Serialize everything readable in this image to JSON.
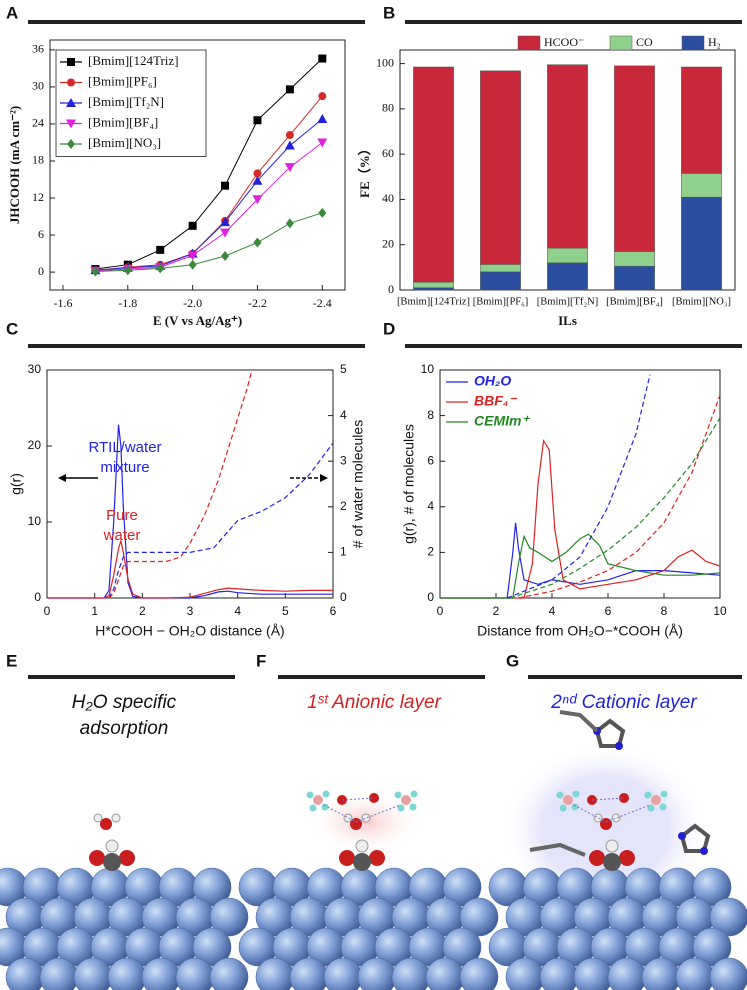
{
  "panel_labels": [
    "A",
    "B",
    "C",
    "D",
    "E",
    "F",
    "G"
  ],
  "chart_data": [
    {
      "type": "line",
      "xlabel": "E (V vs Ag/Ag⁺)",
      "ylabel": "JHCOOH (mA cm⁻²)",
      "xlim": [
        -1.56,
        -2.47
      ],
      "ylim": [
        -2.9,
        37.6
      ],
      "xticks": [
        -1.6,
        -1.8,
        {
          "value": -2,
          "label": "-2.0"
        },
        -2.2,
        -2.4
      ],
      "yticks": [
        0,
        6,
        12,
        18,
        24,
        30,
        36
      ],
      "legend": "upper left",
      "x": [
        -1.7,
        -1.8,
        -1.9,
        -2,
        -2.1,
        -2.2,
        -2.3,
        -2.4
      ],
      "series": [
        {
          "name": "[Bmim][124Triz]",
          "color": "#000000",
          "marker": "square",
          "values": [
            0.5,
            1.2,
            3.6,
            7.5,
            14,
            24.6,
            29.6,
            34.6
          ]
        },
        {
          "name": "[Bmim][PF₆]",
          "color": "#d42a2a",
          "marker": "circle",
          "values": [
            0.3,
            0.8,
            1.2,
            3,
            8.3,
            16,
            22.2,
            28.5
          ]
        },
        {
          "name": "[Bmim][Tf₂N]",
          "color": "#2222dd",
          "marker": "triangle-up",
          "values": [
            0.3,
            0.7,
            1,
            3,
            8.1,
            14.8,
            20.5,
            24.8
          ]
        },
        {
          "name": "[Bmim][BF₄]",
          "color": "#dd22dd",
          "marker": "triangle-down",
          "values": [
            0.2,
            0.5,
            0.8,
            2.7,
            6.4,
            11.8,
            17,
            21
          ]
        },
        {
          "name": "[Bmim][NO₃]",
          "color": "#3a8a3a",
          "marker": "diamond",
          "values": [
            0.1,
            0.3,
            0.6,
            1.2,
            2.6,
            4.8,
            7.9,
            9.6
          ]
        }
      ]
    },
    {
      "type": "bar",
      "stacked": true,
      "xlabel": "ILs",
      "ylabel": "FE（%）",
      "ylim": [
        0,
        106
      ],
      "yticks": [
        0,
        20,
        40,
        60,
        80,
        100
      ],
      "legend": "top",
      "categories": [
        "[Bmim][124Triz]",
        "[Bmim][PF₆]",
        "[Bmim][Tf₂N]",
        "[Bmim][BF₄]",
        "[Bmim][NO₃]"
      ],
      "series": [
        {
          "name": "H₂",
          "color": "#2a4ea0",
          "values": [
            1,
            8,
            12,
            10.5,
            41
          ]
        },
        {
          "name": "CO",
          "color": "#8fd18a",
          "values": [
            2.5,
            3.3,
            6.5,
            6.5,
            10.5
          ]
        },
        {
          "name": "HCOO⁻",
          "color": "#c8283a",
          "values": [
            95,
            85.5,
            81,
            82,
            47
          ]
        }
      ]
    },
    {
      "type": "line",
      "xlabel": "H*COOH − OH₂O distance (Å)",
      "ylabel": "g(r)",
      "y2label": "# of water molecules",
      "xlim": [
        0,
        6
      ],
      "ylim": [
        0,
        30
      ],
      "y2lim": [
        0,
        5
      ],
      "xticks": [
        0,
        1,
        2,
        3,
        4,
        5,
        6
      ],
      "yticks": [
        0,
        10,
        20,
        30
      ],
      "y2ticks": [
        0,
        1,
        2,
        3,
        4,
        5
      ],
      "annotations": [
        "RTIL/water",
        "mixture",
        "Pure",
        "water"
      ],
      "series": [
        {
          "color": "#2222ee",
          "x": [
            0,
            1.2,
            1.3,
            1.4,
            1.5,
            1.55,
            1.6,
            1.7,
            1.8,
            2,
            2.5,
            3,
            3.3,
            3.6,
            3.8,
            4,
            4.5,
            5,
            5.5,
            6
          ],
          "values": [
            0,
            0,
            1,
            10,
            22.8,
            20,
            12,
            2,
            0.2,
            0,
            0,
            0,
            0.3,
            0.8,
            0.9,
            0.7,
            0.5,
            0.5,
            0.5,
            0.5
          ]
        },
        {
          "color": "#dd2222",
          "x": [
            0,
            1.2,
            1.3,
            1.4,
            1.5,
            1.55,
            1.6,
            1.7,
            1.8,
            2,
            2.5,
            3,
            3.3,
            3.6,
            3.8,
            4,
            4.5,
            5,
            5.5,
            6
          ],
          "values": [
            0,
            0,
            0.3,
            3,
            6.5,
            7.5,
            6,
            2.5,
            0.5,
            0,
            0,
            0.1,
            0.6,
            1.1,
            1.3,
            1.2,
            1,
            0.9,
            1,
            1
          ]
        },
        {
          "color": "#2222ee",
          "dash": true,
          "axis": "y2",
          "x": [
            1.3,
            1.4,
            1.5,
            1.6,
            1.7,
            2,
            2.5,
            3,
            3.5,
            4,
            4.5,
            5,
            5.5,
            6
          ],
          "values": [
            0,
            0.2,
            0.6,
            0.9,
            1,
            1,
            1,
            1,
            1.1,
            1.7,
            1.9,
            2.2,
            2.7,
            3.4
          ]
        },
        {
          "color": "#dd2222",
          "dash": true,
          "axis": "y2",
          "x": [
            1.3,
            1.4,
            1.5,
            1.6,
            1.7,
            2,
            2.5,
            2.8,
            3,
            3.3,
            3.6,
            3.9,
            4.2,
            4.3
          ],
          "values": [
            0,
            0.1,
            0.4,
            0.7,
            0.8,
            0.8,
            0.8,
            0.9,
            1.2,
            1.8,
            2.6,
            3.6,
            4.6,
            5
          ]
        }
      ]
    },
    {
      "type": "line",
      "xlabel": "Distance from OH₂O−*COOH (Å)",
      "ylabel": "g(r), # of molecules",
      "legend": "upper left",
      "xlim": [
        0,
        10
      ],
      "ylim": [
        0,
        10
      ],
      "xticks": [
        0,
        2,
        4,
        6,
        8,
        10
      ],
      "yticks": [
        0,
        2,
        4,
        6,
        8,
        10
      ],
      "series": [
        {
          "name": "OH₂O",
          "color": "#2222ee",
          "x": [
            0,
            2.4,
            2.6,
            2.7,
            2.8,
            3,
            3.5,
            4,
            5,
            6,
            7,
            8,
            9,
            10
          ],
          "values": [
            0,
            0,
            2,
            3.3,
            2.2,
            0.8,
            0.6,
            0.8,
            0.6,
            0.8,
            1.2,
            1.2,
            1.1,
            1
          ]
        },
        {
          "name": "BBF₄⁻",
          "color": "#dd2222",
          "x": [
            0,
            3,
            3.3,
            3.5,
            3.7,
            3.9,
            4.1,
            4.4,
            5,
            6,
            7,
            8,
            8.5,
            9,
            9.5,
            10
          ],
          "values": [
            0,
            0,
            1.5,
            5,
            6.9,
            6.5,
            3,
            0.8,
            0.4,
            0.6,
            0.8,
            1.2,
            1.8,
            2.1,
            1.6,
            1.4
          ]
        },
        {
          "name": "CEMIm⁺",
          "color": "#228822",
          "x": [
            0,
            2.6,
            2.8,
            3,
            3.2,
            3.5,
            4,
            4.5,
            5,
            5.3,
            5.7,
            6,
            7,
            8,
            9,
            10
          ],
          "values": [
            0,
            0,
            1.5,
            2.7,
            2.2,
            2,
            1.6,
            2,
            2.6,
            2.8,
            2.3,
            1.5,
            1.2,
            1,
            1,
            1.1
          ]
        },
        {
          "color": "#2222ee",
          "dash": true,
          "x": [
            2.4,
            3,
            4,
            5,
            6,
            7,
            7.5
          ],
          "values": [
            0,
            0.3,
            0.8,
            1.8,
            4,
            7.2,
            9.8
          ]
        },
        {
          "color": "#dd2222",
          "dash": true,
          "x": [
            2.8,
            4,
            5,
            6,
            7,
            8,
            9,
            10
          ],
          "values": [
            0,
            0.3,
            0.7,
            1.2,
            2,
            3.3,
            5.5,
            8.9
          ]
        },
        {
          "color": "#228822",
          "dash": true,
          "x": [
            2.5,
            4,
            5,
            6,
            7,
            8,
            9,
            10
          ],
          "values": [
            0,
            0.6,
            1.3,
            2.1,
            3.1,
            4.4,
            5.9,
            7.9
          ]
        }
      ]
    }
  ],
  "captions": [
    [
      "H₂O specific",
      "adsorption"
    ],
    [
      "1ˢᵗ Anionic layer"
    ],
    [
      "2ⁿᵈ Cationic layer"
    ]
  ]
}
